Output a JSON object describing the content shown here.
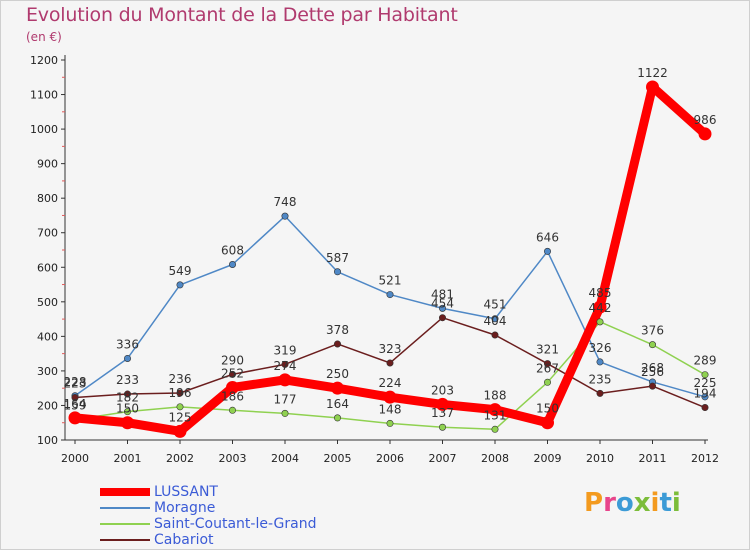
{
  "header": {
    "title": "Evolution du Montant de la Dette par Habitant",
    "unit": "(en €)"
  },
  "brand": {
    "text": "Proxiti",
    "colors": [
      "#f39a1e",
      "#e8458b",
      "#3c9bd6",
      "#7cbd3a",
      "#f39a1e",
      "#3c9bd6",
      "#7cbd3a"
    ]
  },
  "chart_data": {
    "type": "line",
    "x": [
      2000,
      2001,
      2002,
      2003,
      2004,
      2005,
      2006,
      2007,
      2008,
      2009,
      2010,
      2011,
      2012
    ],
    "ylim": [
      100,
      1200
    ],
    "yticks": [
      100,
      200,
      300,
      400,
      500,
      600,
      700,
      800,
      900,
      1000,
      1100,
      1200
    ],
    "grid": false,
    "legend_position": "bottom-left",
    "series": [
      {
        "name": "Moragne",
        "color": "#4f88c6",
        "values": [
          228,
          336,
          549,
          608,
          748,
          587,
          521,
          481,
          451,
          646,
          326,
          268,
          225
        ]
      },
      {
        "name": "Saint-Coutant-le-Grand",
        "color": "#8fd150",
        "values": [
          159,
          182,
          196,
          186,
          177,
          164,
          148,
          137,
          131,
          267,
          442,
          376,
          289
        ]
      },
      {
        "name": "Cabariot",
        "color": "#6b1e1e",
        "values": [
          223,
          233,
          236,
          290,
          319,
          378,
          323,
          454,
          404,
          321,
          235,
          256,
          194
        ]
      },
      {
        "name": "LUSSANT",
        "color": "#ff0000",
        "values": [
          164,
          150,
          125,
          252,
          274,
          250,
          224,
          203,
          188,
          150,
          485,
          1122,
          986
        ]
      }
    ]
  }
}
